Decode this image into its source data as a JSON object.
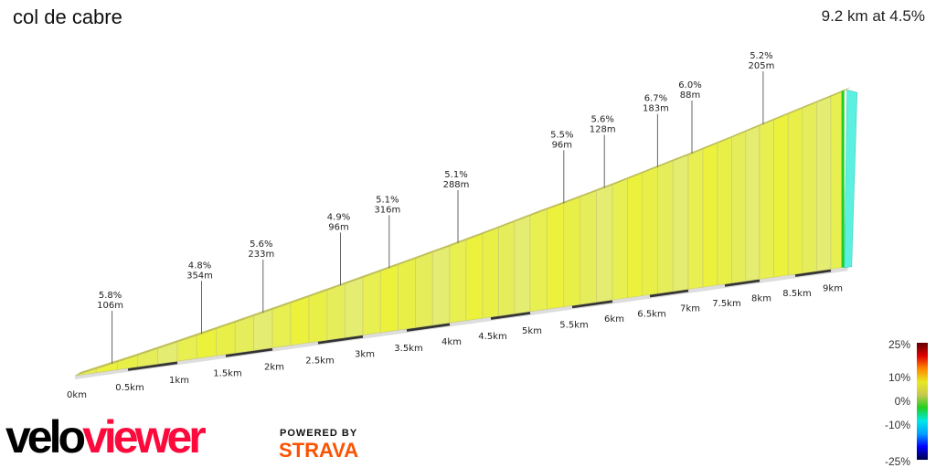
{
  "chart_data": {
    "type": "area",
    "title": "col de cabre",
    "summary": "9.2 km at 4.5%",
    "total_distance_km": 9.2,
    "average_gradient_pct": 4.5,
    "x_ticks": [
      "0km",
      "0.5km",
      "1km",
      "1.5km",
      "2km",
      "2.5km",
      "3km",
      "3.5km",
      "4km",
      "4.5km",
      "5km",
      "5.5km",
      "6km",
      "6.5km",
      "7km",
      "7.5km",
      "8km",
      "8.5km",
      "9km"
    ],
    "annotations": [
      {
        "km": 0.35,
        "gradient": "5.8%",
        "length": "106m"
      },
      {
        "km": 1.25,
        "gradient": "4.8%",
        "length": "354m"
      },
      {
        "km": 1.9,
        "gradient": "5.6%",
        "length": "233m"
      },
      {
        "km": 2.75,
        "gradient": "4.9%",
        "length": "96m"
      },
      {
        "km": 3.3,
        "gradient": "5.1%",
        "length": "316m"
      },
      {
        "km": 4.1,
        "gradient": "5.1%",
        "length": "288m"
      },
      {
        "km": 5.4,
        "gradient": "5.5%",
        "length": "96m"
      },
      {
        "km": 5.9,
        "gradient": "5.6%",
        "length": "128m"
      },
      {
        "km": 6.6,
        "gradient": "6.7%",
        "length": "183m"
      },
      {
        "km": 7.05,
        "gradient": "6.0%",
        "length": "88m"
      },
      {
        "km": 8.05,
        "gradient": "5.2%",
        "length": "205m"
      }
    ],
    "legend": {
      "ticks": [
        "25%",
        "10%",
        "0%",
        "-10%",
        "-25%"
      ],
      "range": [
        -25,
        25
      ],
      "colors": [
        "#00004a",
        "#0000ff",
        "#00a0ff",
        "#00e8e8",
        "#20d020",
        "#c8c850",
        "#e8e820",
        "#ff8800",
        "#e00000",
        "#600000"
      ]
    }
  },
  "branding": {
    "logo_part1": "velo",
    "logo_part2": "viewer",
    "powered_by": "POWERED BY",
    "strava": "STRAVA"
  }
}
